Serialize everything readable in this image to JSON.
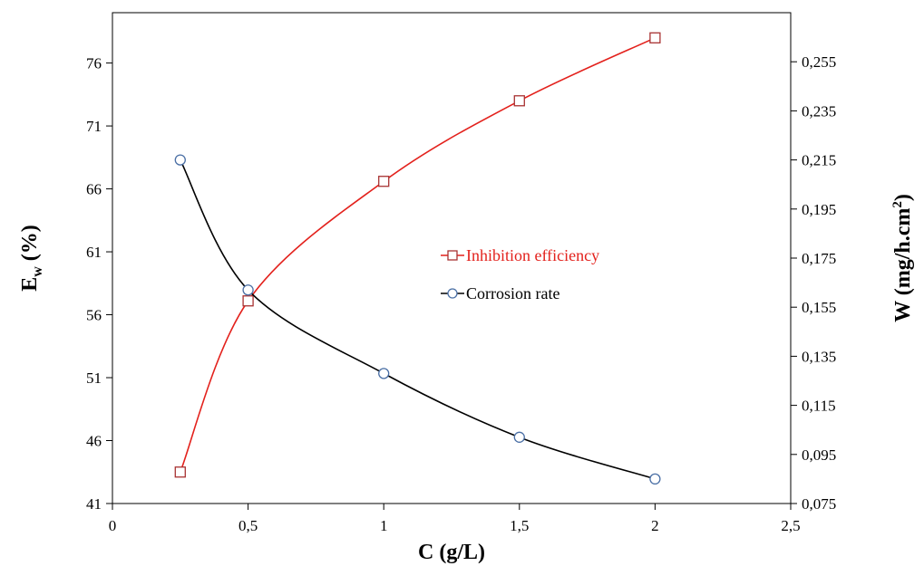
{
  "chart_data": {
    "type": "line",
    "x_axis": {
      "label": "C (g/L)",
      "range": [
        0,
        2.5
      ],
      "ticks": [
        "0",
        "0,5",
        "1",
        "1,5",
        "2",
        "2,5"
      ]
    },
    "y_left_axis": {
      "label_main": "E",
      "label_sub": "w",
      "label_rest": " (%)",
      "range": [
        41,
        80
      ],
      "ticks": [
        "41",
        "46",
        "51",
        "56",
        "61",
        "66",
        "71",
        "76"
      ]
    },
    "y_right_axis": {
      "label_main": "W (mg/h.cm",
      "label_sup": "2",
      "label_rest": ")",
      "range": [
        0.075,
        0.275
      ],
      "ticks": [
        "0,075",
        "0,095",
        "0,115",
        "0,135",
        "0,155",
        "0,175",
        "0,195",
        "0,215",
        "0,235",
        "0,255"
      ]
    },
    "series": [
      {
        "name": "Inhibition efficiency",
        "axis": "left",
        "color": "#e3211c",
        "marker": "square",
        "marker_color": "#a83232",
        "x": [
          0.25,
          0.5,
          1,
          1.5,
          2
        ],
        "y": [
          43.5,
          57.1,
          66.6,
          73.0,
          78.0
        ]
      },
      {
        "name": "Corrosion rate",
        "axis": "right",
        "color": "#000000",
        "marker": "circle",
        "marker_color": "#4a6fa5",
        "x": [
          0.25,
          0.5,
          1,
          1.5,
          2
        ],
        "y": [
          0.215,
          0.162,
          0.128,
          0.102,
          0.085
        ]
      }
    ],
    "legend": "center-right",
    "grid": false
  }
}
